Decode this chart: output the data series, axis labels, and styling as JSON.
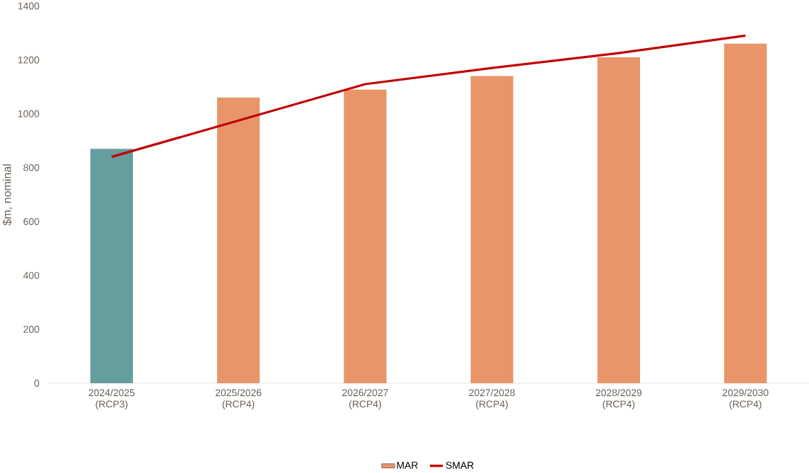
{
  "chart_data": {
    "type": "bar",
    "ylabel": "$m, nominal",
    "categories": [
      "2024/2025 (RCP3)",
      "2025/2026 (RCP4)",
      "2026/2027 (RCP4)",
      "2027/2028 (RCP4)",
      "2028/2029 (RCP4)",
      "2029/2030 (RCP4)"
    ],
    "series": [
      {
        "name": "MAR",
        "color": "#e8956a",
        "colors": [
          "#669e9e",
          "#e8956a",
          "#e8956a",
          "#e8956a",
          "#e8956a",
          "#e8956a"
        ],
        "values": [
          870,
          1060,
          1090,
          1140,
          1210,
          1260
        ]
      },
      {
        "name": "SMAR",
        "type": "line",
        "color": "#c00000",
        "values": [
          840,
          975,
          1110,
          1170,
          1225,
          1290
        ]
      }
    ],
    "ylim": [
      0,
      1400
    ],
    "yticks": [
      0,
      200,
      400,
      600,
      800,
      1000,
      1200,
      1400
    ],
    "grid": false,
    "legend": "bottom"
  }
}
